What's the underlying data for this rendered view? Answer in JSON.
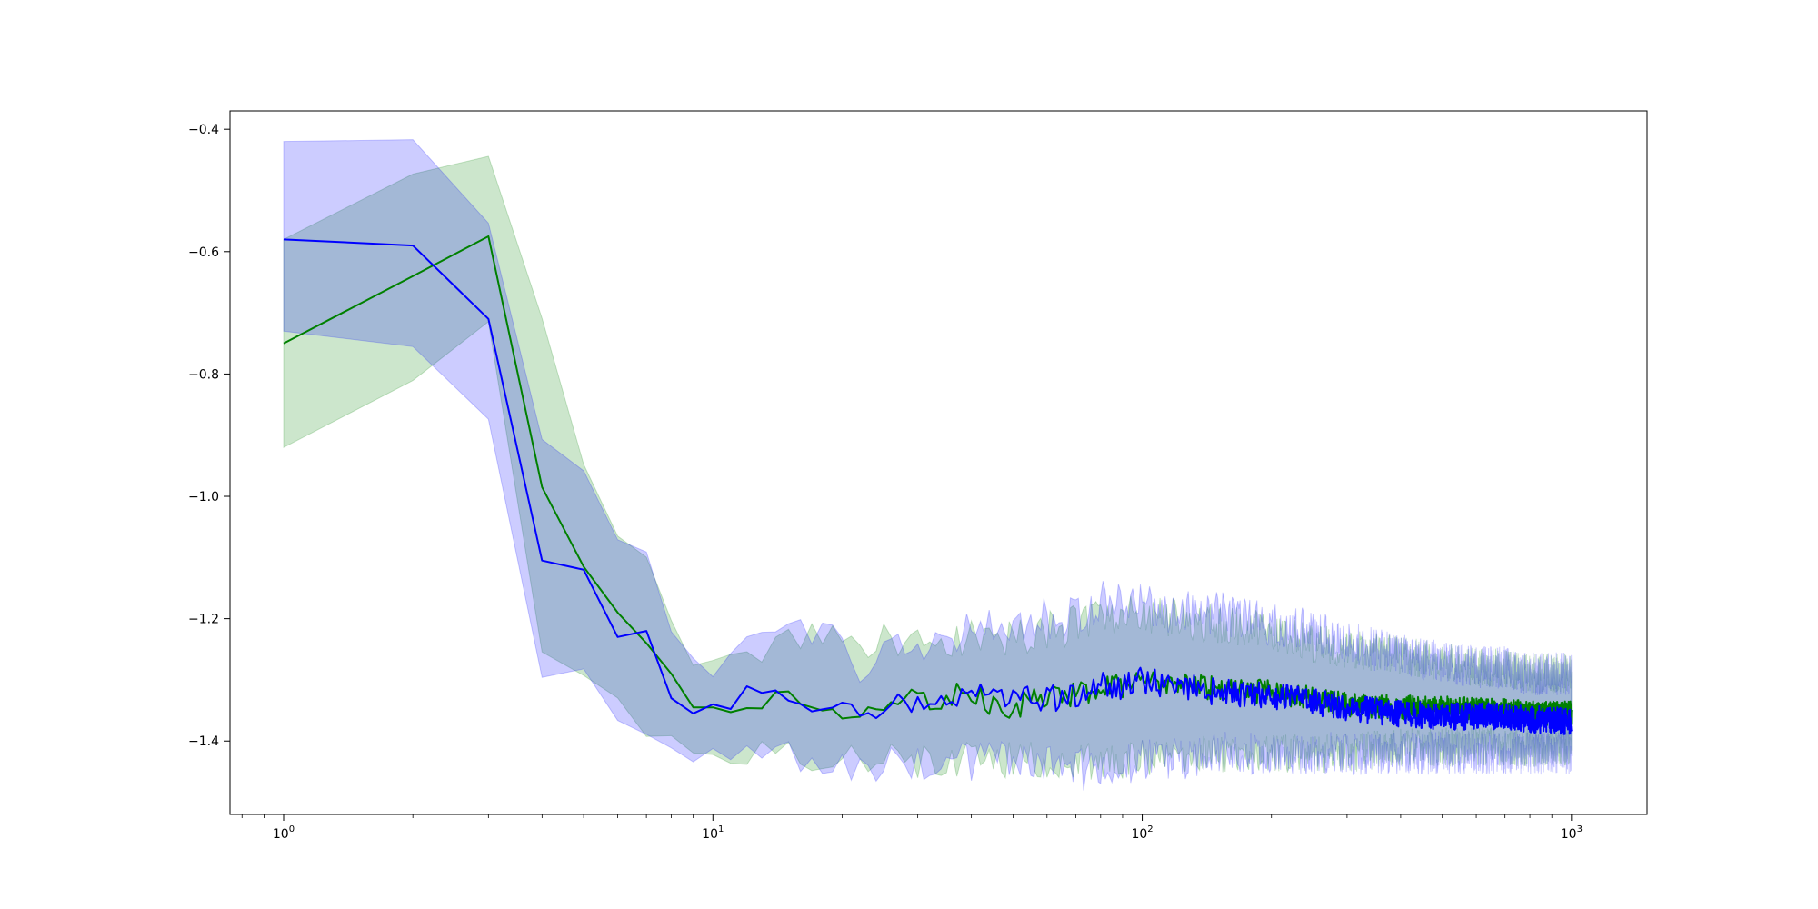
{
  "chart_data": {
    "type": "line",
    "title": "",
    "xlabel": "",
    "ylabel": "",
    "xscale": "log",
    "xlim": [
      0.75,
      1500
    ],
    "ylim": [
      -1.52,
      -0.37
    ],
    "grid": false,
    "legend": "none",
    "x_tick_labels": [
      {
        "base": "10",
        "exp": "0",
        "value": 1
      },
      {
        "base": "10",
        "exp": "1",
        "value": 10
      },
      {
        "base": "10",
        "exp": "2",
        "value": 100
      },
      {
        "base": "10",
        "exp": "3",
        "value": 1000
      }
    ],
    "y_tick_labels": [
      {
        "label": "−0.4",
        "value": -0.4
      },
      {
        "label": "−0.6",
        "value": -0.6
      },
      {
        "label": "−0.8",
        "value": -0.8
      },
      {
        "label": "−1.0",
        "value": -1.0
      },
      {
        "label": "−1.2",
        "value": -1.2
      },
      {
        "label": "−1.4",
        "value": -1.4
      }
    ],
    "series": [
      {
        "color": "#008000",
        "band_color": "#008000",
        "band_opacity": 0.2,
        "x": [
          1,
          2,
          3,
          4,
          5,
          6,
          7,
          8,
          9,
          10,
          12,
          14,
          17,
          20,
          22,
          25,
          30,
          35,
          40,
          45,
          50,
          60,
          70,
          80,
          90,
          100,
          120,
          150,
          200,
          250,
          300,
          400,
          500,
          600,
          700,
          800,
          900,
          1000
        ],
        "y": [
          -0.75,
          -0.64,
          -0.575,
          -0.985,
          -1.115,
          -1.19,
          -1.24,
          -1.29,
          -1.345,
          -1.345,
          -1.345,
          -1.325,
          -1.335,
          -1.345,
          -1.37,
          -1.335,
          -1.335,
          -1.33,
          -1.32,
          -1.345,
          -1.345,
          -1.325,
          -1.325,
          -1.315,
          -1.31,
          -1.305,
          -1.305,
          -1.315,
          -1.32,
          -1.33,
          -1.34,
          -1.345,
          -1.345,
          -1.35,
          -1.35,
          -1.355,
          -1.355,
          -1.355
        ],
        "lower": [
          -0.92,
          -0.81,
          -0.72,
          -1.26,
          -1.28,
          -1.33,
          -1.38,
          -1.41,
          -1.41,
          -1.42,
          -1.41,
          -1.41,
          -1.42,
          -1.42,
          -1.43,
          -1.41,
          -1.43,
          -1.43,
          -1.43,
          -1.43,
          -1.43,
          -1.43,
          -1.44,
          -1.43,
          -1.43,
          -1.43,
          -1.43,
          -1.42,
          -1.42,
          -1.42,
          -1.42,
          -1.41,
          -1.41,
          -1.41,
          -1.41,
          -1.41,
          -1.41,
          -1.41
        ],
        "upper": [
          -0.58,
          -0.47,
          -0.44,
          -0.7,
          -0.95,
          -1.06,
          -1.08,
          -1.2,
          -1.28,
          -1.28,
          -1.27,
          -1.24,
          -1.22,
          -1.24,
          -1.25,
          -1.24,
          -1.25,
          -1.24,
          -1.23,
          -1.23,
          -1.23,
          -1.22,
          -1.21,
          -1.2,
          -1.19,
          -1.19,
          -1.2,
          -1.21,
          -1.22,
          -1.24,
          -1.25,
          -1.26,
          -1.27,
          -1.28,
          -1.28,
          -1.29,
          -1.29,
          -1.29
        ],
        "noise_amplitude": 0.02
      },
      {
        "color": "#0000ff",
        "band_color": "#0000ff",
        "band_opacity": 0.2,
        "x": [
          1,
          2,
          3,
          4,
          5,
          6,
          7,
          8,
          9,
          10,
          12,
          14,
          17,
          20,
          22,
          25,
          30,
          35,
          40,
          45,
          50,
          60,
          70,
          80,
          90,
          100,
          120,
          150,
          200,
          250,
          300,
          400,
          500,
          600,
          700,
          800,
          900,
          1000
        ],
        "y": [
          -0.58,
          -0.59,
          -0.71,
          -1.105,
          -1.12,
          -1.23,
          -1.22,
          -1.33,
          -1.355,
          -1.34,
          -1.33,
          -1.33,
          -1.33,
          -1.34,
          -1.375,
          -1.335,
          -1.335,
          -1.33,
          -1.315,
          -1.33,
          -1.335,
          -1.33,
          -1.33,
          -1.31,
          -1.31,
          -1.3,
          -1.31,
          -1.32,
          -1.325,
          -1.335,
          -1.345,
          -1.355,
          -1.36,
          -1.36,
          -1.36,
          -1.365,
          -1.365,
          -1.37
        ],
        "lower": [
          -0.73,
          -0.76,
          -0.87,
          -1.31,
          -1.28,
          -1.38,
          -1.37,
          -1.42,
          -1.42,
          -1.42,
          -1.42,
          -1.43,
          -1.42,
          -1.42,
          -1.44,
          -1.43,
          -1.43,
          -1.43,
          -1.44,
          -1.43,
          -1.44,
          -1.44,
          -1.45,
          -1.44,
          -1.44,
          -1.43,
          -1.43,
          -1.42,
          -1.42,
          -1.42,
          -1.42,
          -1.42,
          -1.42,
          -1.42,
          -1.42,
          -1.42,
          -1.42,
          -1.42
        ],
        "upper": [
          -0.42,
          -0.42,
          -0.55,
          -0.91,
          -0.97,
          -1.08,
          -1.1,
          -1.24,
          -1.29,
          -1.29,
          -1.26,
          -1.24,
          -1.23,
          -1.25,
          -1.27,
          -1.24,
          -1.23,
          -1.24,
          -1.21,
          -1.22,
          -1.22,
          -1.2,
          -1.19,
          -1.17,
          -1.17,
          -1.18,
          -1.19,
          -1.19,
          -1.21,
          -1.22,
          -1.24,
          -1.26,
          -1.27,
          -1.28,
          -1.28,
          -1.29,
          -1.29,
          -1.29
        ],
        "noise_amplitude": 0.022
      }
    ]
  }
}
